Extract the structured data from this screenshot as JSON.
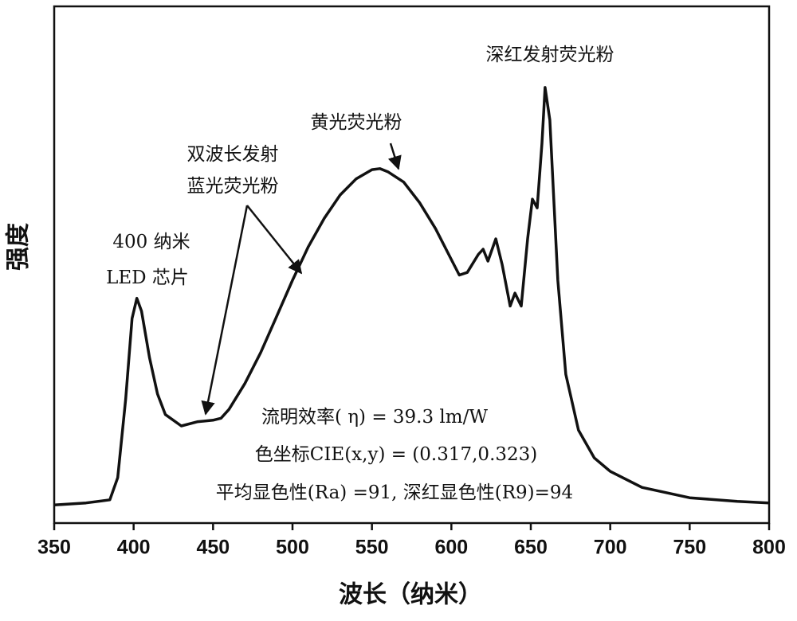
{
  "chart_data": {
    "type": "line",
    "x_label": "波长（纳米）",
    "y_label": "强度",
    "xlim": [
      350,
      800
    ],
    "ylim": [
      0,
      100
    ],
    "xticks": [
      350,
      400,
      450,
      500,
      550,
      600,
      650,
      700,
      750,
      800
    ],
    "color": "#111111",
    "x": [
      350,
      370,
      385,
      390,
      395,
      399,
      402,
      405,
      410,
      415,
      420,
      430,
      440,
      450,
      455,
      460,
      470,
      480,
      490,
      500,
      510,
      520,
      530,
      540,
      550,
      555,
      560,
      570,
      580,
      590,
      600,
      605,
      610,
      617,
      620,
      623,
      628,
      632,
      637,
      640,
      644,
      648,
      651,
      654,
      657,
      659,
      662,
      667,
      672,
      680,
      690,
      700,
      720,
      750,
      780,
      800
    ],
    "values": [
      3.5,
      3.9,
      4.5,
      8.8,
      24,
      39.6,
      43.5,
      41,
      32,
      25,
      21,
      18.8,
      19.6,
      19.9,
      20.3,
      22,
      27,
      33,
      40,
      47,
      53.5,
      59,
      63.5,
      66.6,
      68.4,
      68.6,
      68,
      66,
      62,
      57,
      51,
      48,
      48.5,
      52,
      53,
      50.7,
      55,
      50,
      42,
      44.5,
      42,
      55,
      62.7,
      61,
      73.5,
      84.3,
      78,
      47,
      28.8,
      18,
      12.6,
      10,
      6.9,
      4.9,
      4.2,
      3.9
    ],
    "annotations": [
      "400 纳米",
      "LED 芯片",
      "双波长发射",
      "蓝光荧光粉",
      "黄光荧光粉",
      "深红发射荧光粉",
      "流明效率( η) = 39.3 lm/W",
      "色坐标CIE(x,y) = (0.317,0.323)",
      "平均显色性(Ra) =91, 深红显色性(R9)=94"
    ]
  }
}
